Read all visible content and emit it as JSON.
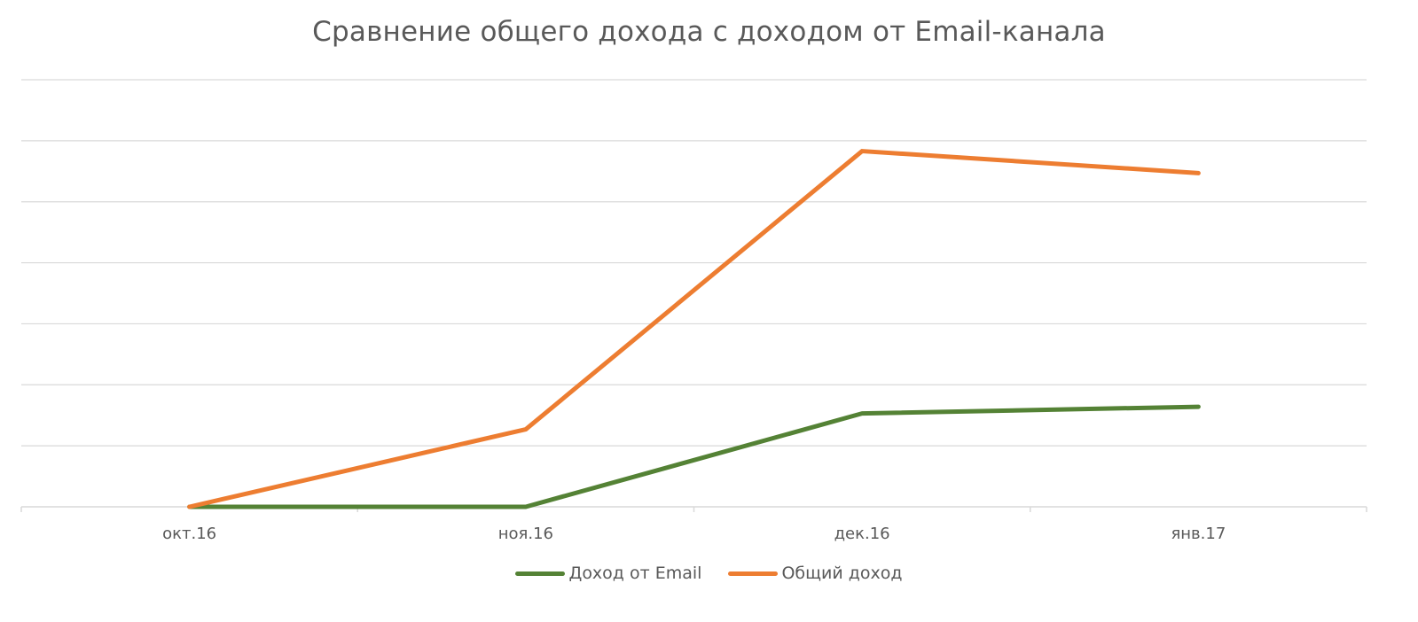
{
  "chart_data": {
    "type": "line",
    "title": "Сравнение общего дохода с доходом от Email-канала",
    "categories": [
      "окт.16",
      "ноя.16",
      "дек.16",
      "янв.17"
    ],
    "series": [
      {
        "name": "Доход от Email",
        "values": [
          0,
          0,
          1.53,
          1.64
        ],
        "color": "#548235"
      },
      {
        "name": "Общий доход",
        "values": [
          0,
          1.27,
          5.83,
          5.47
        ],
        "color": "#ED7D31"
      }
    ],
    "ylim": [
      0,
      7
    ],
    "yticks_shown": false,
    "grid": "horizontal",
    "legend_position": "bottom"
  }
}
